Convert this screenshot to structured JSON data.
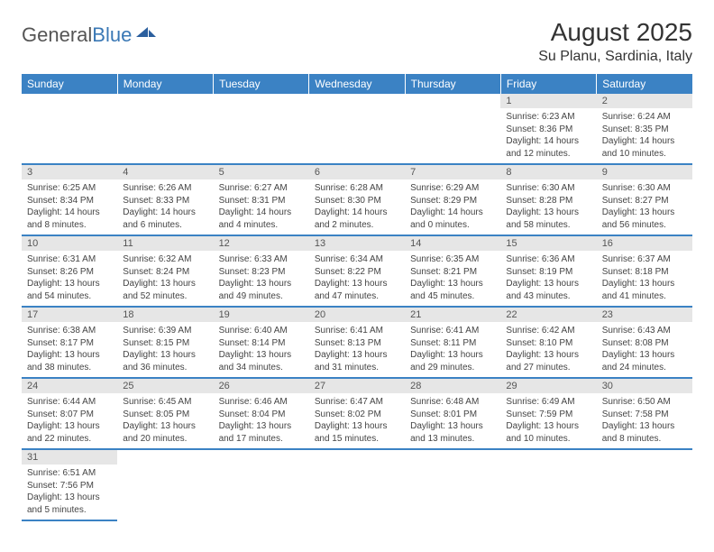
{
  "logo": {
    "general": "General",
    "blue": "Blue"
  },
  "colors": {
    "header_bg": "#3b82c4",
    "header_text": "#ffffff",
    "daynum_bg": "#e6e6e6",
    "border": "#3b82c4",
    "logo_blue": "#3a78b5"
  },
  "title": "August 2025",
  "location": "Su Planu, Sardinia, Italy",
  "weekdays": [
    "Sunday",
    "Monday",
    "Tuesday",
    "Wednesday",
    "Thursday",
    "Friday",
    "Saturday"
  ],
  "weeks": [
    [
      null,
      null,
      null,
      null,
      null,
      {
        "n": "1",
        "sr": "Sunrise: 6:23 AM",
        "ss": "Sunset: 8:36 PM",
        "d1": "Daylight: 14 hours",
        "d2": "and 12 minutes."
      },
      {
        "n": "2",
        "sr": "Sunrise: 6:24 AM",
        "ss": "Sunset: 8:35 PM",
        "d1": "Daylight: 14 hours",
        "d2": "and 10 minutes."
      }
    ],
    [
      {
        "n": "3",
        "sr": "Sunrise: 6:25 AM",
        "ss": "Sunset: 8:34 PM",
        "d1": "Daylight: 14 hours",
        "d2": "and 8 minutes."
      },
      {
        "n": "4",
        "sr": "Sunrise: 6:26 AM",
        "ss": "Sunset: 8:33 PM",
        "d1": "Daylight: 14 hours",
        "d2": "and 6 minutes."
      },
      {
        "n": "5",
        "sr": "Sunrise: 6:27 AM",
        "ss": "Sunset: 8:31 PM",
        "d1": "Daylight: 14 hours",
        "d2": "and 4 minutes."
      },
      {
        "n": "6",
        "sr": "Sunrise: 6:28 AM",
        "ss": "Sunset: 8:30 PM",
        "d1": "Daylight: 14 hours",
        "d2": "and 2 minutes."
      },
      {
        "n": "7",
        "sr": "Sunrise: 6:29 AM",
        "ss": "Sunset: 8:29 PM",
        "d1": "Daylight: 14 hours",
        "d2": "and 0 minutes."
      },
      {
        "n": "8",
        "sr": "Sunrise: 6:30 AM",
        "ss": "Sunset: 8:28 PM",
        "d1": "Daylight: 13 hours",
        "d2": "and 58 minutes."
      },
      {
        "n": "9",
        "sr": "Sunrise: 6:30 AM",
        "ss": "Sunset: 8:27 PM",
        "d1": "Daylight: 13 hours",
        "d2": "and 56 minutes."
      }
    ],
    [
      {
        "n": "10",
        "sr": "Sunrise: 6:31 AM",
        "ss": "Sunset: 8:26 PM",
        "d1": "Daylight: 13 hours",
        "d2": "and 54 minutes."
      },
      {
        "n": "11",
        "sr": "Sunrise: 6:32 AM",
        "ss": "Sunset: 8:24 PM",
        "d1": "Daylight: 13 hours",
        "d2": "and 52 minutes."
      },
      {
        "n": "12",
        "sr": "Sunrise: 6:33 AM",
        "ss": "Sunset: 8:23 PM",
        "d1": "Daylight: 13 hours",
        "d2": "and 49 minutes."
      },
      {
        "n": "13",
        "sr": "Sunrise: 6:34 AM",
        "ss": "Sunset: 8:22 PM",
        "d1": "Daylight: 13 hours",
        "d2": "and 47 minutes."
      },
      {
        "n": "14",
        "sr": "Sunrise: 6:35 AM",
        "ss": "Sunset: 8:21 PM",
        "d1": "Daylight: 13 hours",
        "d2": "and 45 minutes."
      },
      {
        "n": "15",
        "sr": "Sunrise: 6:36 AM",
        "ss": "Sunset: 8:19 PM",
        "d1": "Daylight: 13 hours",
        "d2": "and 43 minutes."
      },
      {
        "n": "16",
        "sr": "Sunrise: 6:37 AM",
        "ss": "Sunset: 8:18 PM",
        "d1": "Daylight: 13 hours",
        "d2": "and 41 minutes."
      }
    ],
    [
      {
        "n": "17",
        "sr": "Sunrise: 6:38 AM",
        "ss": "Sunset: 8:17 PM",
        "d1": "Daylight: 13 hours",
        "d2": "and 38 minutes."
      },
      {
        "n": "18",
        "sr": "Sunrise: 6:39 AM",
        "ss": "Sunset: 8:15 PM",
        "d1": "Daylight: 13 hours",
        "d2": "and 36 minutes."
      },
      {
        "n": "19",
        "sr": "Sunrise: 6:40 AM",
        "ss": "Sunset: 8:14 PM",
        "d1": "Daylight: 13 hours",
        "d2": "and 34 minutes."
      },
      {
        "n": "20",
        "sr": "Sunrise: 6:41 AM",
        "ss": "Sunset: 8:13 PM",
        "d1": "Daylight: 13 hours",
        "d2": "and 31 minutes."
      },
      {
        "n": "21",
        "sr": "Sunrise: 6:41 AM",
        "ss": "Sunset: 8:11 PM",
        "d1": "Daylight: 13 hours",
        "d2": "and 29 minutes."
      },
      {
        "n": "22",
        "sr": "Sunrise: 6:42 AM",
        "ss": "Sunset: 8:10 PM",
        "d1": "Daylight: 13 hours",
        "d2": "and 27 minutes."
      },
      {
        "n": "23",
        "sr": "Sunrise: 6:43 AM",
        "ss": "Sunset: 8:08 PM",
        "d1": "Daylight: 13 hours",
        "d2": "and 24 minutes."
      }
    ],
    [
      {
        "n": "24",
        "sr": "Sunrise: 6:44 AM",
        "ss": "Sunset: 8:07 PM",
        "d1": "Daylight: 13 hours",
        "d2": "and 22 minutes."
      },
      {
        "n": "25",
        "sr": "Sunrise: 6:45 AM",
        "ss": "Sunset: 8:05 PM",
        "d1": "Daylight: 13 hours",
        "d2": "and 20 minutes."
      },
      {
        "n": "26",
        "sr": "Sunrise: 6:46 AM",
        "ss": "Sunset: 8:04 PM",
        "d1": "Daylight: 13 hours",
        "d2": "and 17 minutes."
      },
      {
        "n": "27",
        "sr": "Sunrise: 6:47 AM",
        "ss": "Sunset: 8:02 PM",
        "d1": "Daylight: 13 hours",
        "d2": "and 15 minutes."
      },
      {
        "n": "28",
        "sr": "Sunrise: 6:48 AM",
        "ss": "Sunset: 8:01 PM",
        "d1": "Daylight: 13 hours",
        "d2": "and 13 minutes."
      },
      {
        "n": "29",
        "sr": "Sunrise: 6:49 AM",
        "ss": "Sunset: 7:59 PM",
        "d1": "Daylight: 13 hours",
        "d2": "and 10 minutes."
      },
      {
        "n": "30",
        "sr": "Sunrise: 6:50 AM",
        "ss": "Sunset: 7:58 PM",
        "d1": "Daylight: 13 hours",
        "d2": "and 8 minutes."
      }
    ],
    [
      {
        "n": "31",
        "sr": "Sunrise: 6:51 AM",
        "ss": "Sunset: 7:56 PM",
        "d1": "Daylight: 13 hours",
        "d2": "and 5 minutes."
      },
      null,
      null,
      null,
      null,
      null,
      null
    ]
  ]
}
